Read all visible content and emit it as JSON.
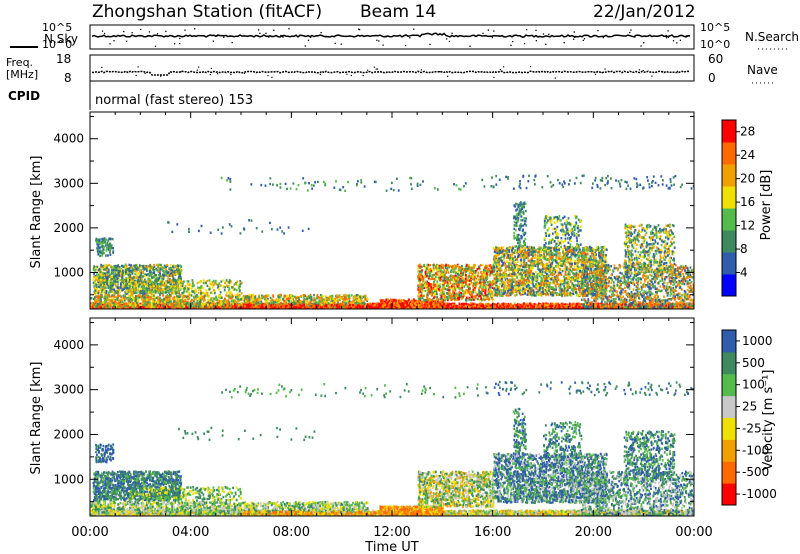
{
  "header": {
    "title": "Zhongshan Station (fitACF)",
    "beam": "Beam 14",
    "date": "22/Jan/2012"
  },
  "status_panels": {
    "nsky": {
      "left_label": "N.Sky",
      "right_label": "N.Search",
      "left_ticks": [
        "10^5",
        "10^0"
      ],
      "right_ticks": [
        "10^5",
        "10^0"
      ]
    },
    "freq": {
      "left_label_line1": "Freq.",
      "left_label_line2": "[MHz]",
      "right_label": "Nave",
      "left_ticks": [
        "18",
        "8"
      ],
      "right_ticks": [
        "60",
        "0"
      ]
    },
    "cpid": {
      "label": "CPID",
      "text": "normal (fast stereo) 153"
    }
  },
  "colors": {
    "power_scale": [
      "#0000ff",
      "#2f5cac",
      "#3e8a5e",
      "#56bb4d",
      "#f0e000",
      "#f0a000",
      "#ff6a00",
      "#ff0000"
    ],
    "velocity_scale": [
      "#ff0000",
      "#ff6a00",
      "#f0a000",
      "#f0e000",
      "#c8c8c8",
      "#56bb4d",
      "#3e8a5e",
      "#2f5cac"
    ]
  },
  "chart_data": [
    {
      "type": "heatmap",
      "name_panel": "power",
      "ylabel": "Slant Range [km]",
      "yticks": [
        "1000",
        "2000",
        "3000",
        "4000"
      ],
      "ylim": [
        180,
        4600
      ],
      "xlim": [
        "00:00",
        "24:00"
      ],
      "colorbar_label": "Power [dB]",
      "colorbar_ticks": [
        "4",
        "8",
        "12",
        "16",
        "20",
        "24",
        "28"
      ],
      "colorbar_range": [
        0,
        30
      ]
    },
    {
      "type": "heatmap",
      "name_panel": "velocity",
      "ylabel": "Slant Range [km]",
      "yticks": [
        "1000",
        "2000",
        "3000",
        "4000"
      ],
      "ylim": [
        180,
        4600
      ],
      "xlim": [
        "00:00",
        "24:00"
      ],
      "colorbar_label": "Velocity [m s⁻¹]",
      "colorbar_ticks": [
        "1000",
        "500",
        "100",
        "25",
        "-25",
        "-100",
        "-500",
        "-1000"
      ]
    }
  ],
  "xaxis": {
    "ticks": [
      "00:00",
      "04:00",
      "08:00",
      "12:00",
      "16:00",
      "20:00",
      "00:00"
    ],
    "label": "Time UT"
  }
}
